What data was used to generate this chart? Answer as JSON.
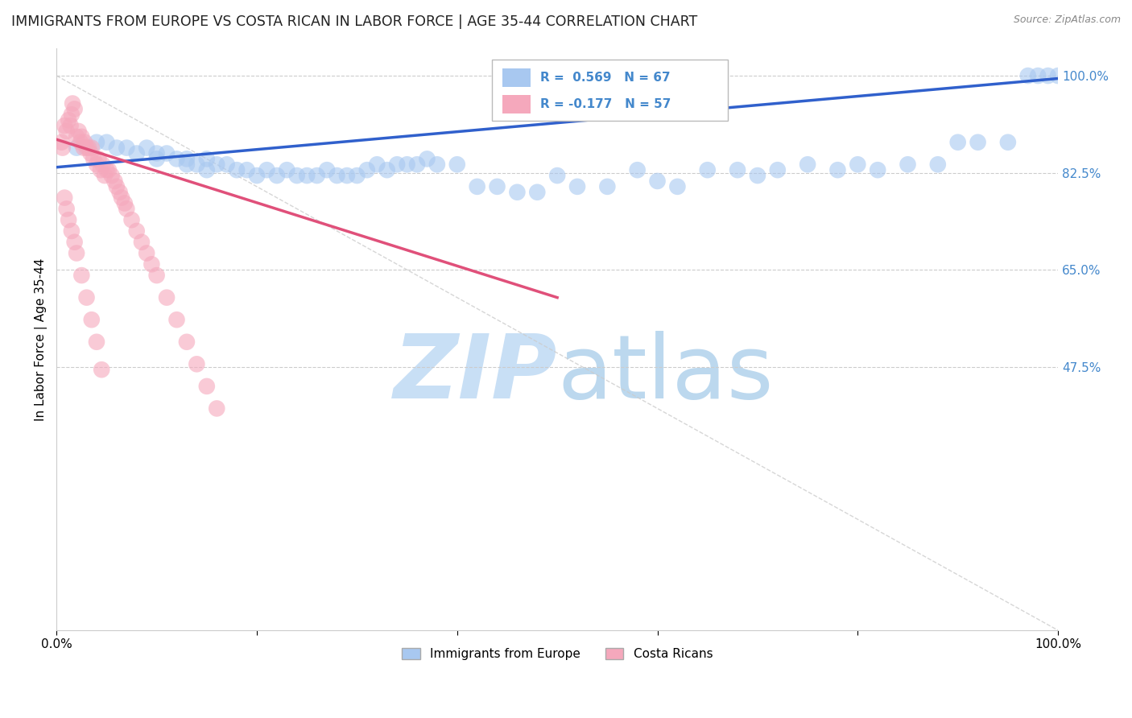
{
  "title": "IMMIGRANTS FROM EUROPE VS COSTA RICAN IN LABOR FORCE | AGE 35-44 CORRELATION CHART",
  "source": "Source: ZipAtlas.com",
  "ylabel": "In Labor Force | Age 35-44",
  "xlim": [
    0.0,
    1.0
  ],
  "ylim": [
    0.0,
    1.05
  ],
  "ytick_vals": [
    0.475,
    0.65,
    0.825,
    1.0
  ],
  "ytick_labels": [
    "47.5%",
    "65.0%",
    "82.5%",
    "100.0%"
  ],
  "blue_R": 0.569,
  "blue_N": 67,
  "pink_R": -0.177,
  "pink_N": 57,
  "legend_label_blue": "Immigrants from Europe",
  "legend_label_pink": "Costa Ricans",
  "blue_color": "#A8C8F0",
  "pink_color": "#F5A8BC",
  "blue_line_color": "#3060CC",
  "pink_line_color": "#E0507A",
  "diagonal_line_color": "#CCCCCC",
  "watermark_color": "#C8DFF5",
  "background_color": "#FFFFFF",
  "title_fontsize": 12.5,
  "blue_scatter_x": [
    0.02,
    0.04,
    0.05,
    0.06,
    0.07,
    0.08,
    0.09,
    0.1,
    0.1,
    0.11,
    0.12,
    0.13,
    0.13,
    0.14,
    0.15,
    0.15,
    0.16,
    0.17,
    0.18,
    0.19,
    0.2,
    0.21,
    0.22,
    0.23,
    0.24,
    0.25,
    0.26,
    0.27,
    0.28,
    0.29,
    0.3,
    0.31,
    0.32,
    0.33,
    0.34,
    0.35,
    0.36,
    0.37,
    0.38,
    0.4,
    0.42,
    0.44,
    0.46,
    0.48,
    0.5,
    0.52,
    0.55,
    0.58,
    0.6,
    0.62,
    0.65,
    0.68,
    0.7,
    0.72,
    0.75,
    0.78,
    0.8,
    0.82,
    0.85,
    0.88,
    0.9,
    0.92,
    0.95,
    0.97,
    0.98,
    0.99,
    1.0
  ],
  "blue_scatter_y": [
    0.87,
    0.88,
    0.88,
    0.87,
    0.87,
    0.86,
    0.87,
    0.86,
    0.85,
    0.86,
    0.85,
    0.85,
    0.84,
    0.84,
    0.85,
    0.83,
    0.84,
    0.84,
    0.83,
    0.83,
    0.82,
    0.83,
    0.82,
    0.83,
    0.82,
    0.82,
    0.82,
    0.83,
    0.82,
    0.82,
    0.82,
    0.83,
    0.84,
    0.83,
    0.84,
    0.84,
    0.84,
    0.85,
    0.84,
    0.84,
    0.8,
    0.8,
    0.79,
    0.79,
    0.82,
    0.8,
    0.8,
    0.83,
    0.81,
    0.8,
    0.83,
    0.83,
    0.82,
    0.83,
    0.84,
    0.83,
    0.84,
    0.83,
    0.84,
    0.84,
    0.88,
    0.88,
    0.88,
    1.0,
    1.0,
    1.0,
    1.0
  ],
  "pink_scatter_x": [
    0.005,
    0.006,
    0.008,
    0.01,
    0.012,
    0.014,
    0.015,
    0.016,
    0.018,
    0.02,
    0.022,
    0.024,
    0.025,
    0.027,
    0.028,
    0.03,
    0.032,
    0.034,
    0.035,
    0.037,
    0.04,
    0.042,
    0.044,
    0.046,
    0.048,
    0.05,
    0.052,
    0.055,
    0.058,
    0.06,
    0.063,
    0.065,
    0.068,
    0.07,
    0.075,
    0.08,
    0.085,
    0.09,
    0.095,
    0.1,
    0.11,
    0.12,
    0.13,
    0.14,
    0.15,
    0.16,
    0.008,
    0.01,
    0.012,
    0.015,
    0.018,
    0.02,
    0.025,
    0.03,
    0.035,
    0.04,
    0.045
  ],
  "pink_scatter_y": [
    0.88,
    0.87,
    0.91,
    0.9,
    0.92,
    0.91,
    0.93,
    0.95,
    0.94,
    0.89,
    0.9,
    0.88,
    0.89,
    0.87,
    0.88,
    0.87,
    0.87,
    0.86,
    0.87,
    0.85,
    0.84,
    0.85,
    0.83,
    0.84,
    0.82,
    0.83,
    0.83,
    0.82,
    0.81,
    0.8,
    0.79,
    0.78,
    0.77,
    0.76,
    0.74,
    0.72,
    0.7,
    0.68,
    0.66,
    0.64,
    0.6,
    0.56,
    0.52,
    0.48,
    0.44,
    0.4,
    0.78,
    0.76,
    0.74,
    0.72,
    0.7,
    0.68,
    0.64,
    0.6,
    0.56,
    0.52,
    0.47
  ],
  "blue_line_x": [
    0.0,
    1.0
  ],
  "blue_line_y": [
    0.835,
    0.995
  ],
  "pink_line_x": [
    0.0,
    0.5
  ],
  "pink_line_y": [
    0.885,
    0.6
  ],
  "diag_line_x": [
    0.0,
    1.0
  ],
  "diag_line_y": [
    1.0,
    0.0
  ]
}
